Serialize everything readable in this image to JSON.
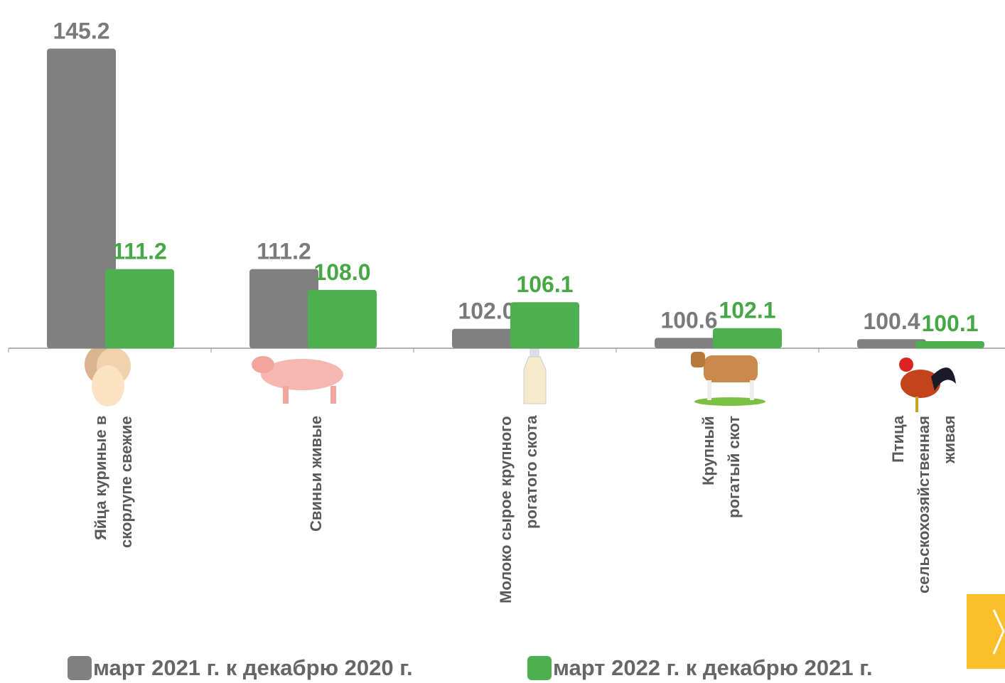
{
  "chart_data": {
    "type": "bar",
    "categories": [
      "Яйца куриные в\nскорлупе свежие",
      "Свиньи живые",
      "Молоко сырое крупного\nрогатого скота",
      "Крупный\nрогатый скот",
      "Птица\nсельскохозяйственная\nживая"
    ],
    "series": [
      {
        "name": "март 2021 г. к декабрю 2020 г.",
        "color": "#808080",
        "label_color": "#7a7a7a",
        "values": [
          145.2,
          111.2,
          102.0,
          100.6,
          100.4
        ],
        "value_labels": [
          "145.2",
          "111.2",
          "102.0",
          "100.6",
          "100.4"
        ]
      },
      {
        "name": "март 2022 г. к декабрю 2021 г.",
        "color": "#4caf50",
        "label_color": "#45a845",
        "values": [
          111.2,
          108.0,
          106.1,
          102.1,
          100.1
        ],
        "value_labels": [
          "111.2",
          "108.0",
          "106.1",
          "102.1",
          "100.1"
        ]
      }
    ],
    "ylim": [
      99,
      147
    ]
  }
}
